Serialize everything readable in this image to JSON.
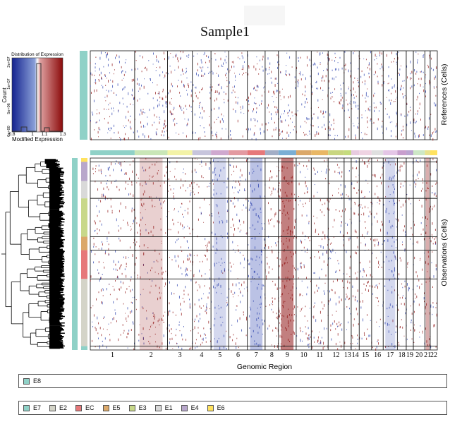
{
  "chart_data": {
    "type": "heatmap",
    "title": "Sample1",
    "xlabel": "Genomic Region",
    "ylabel_top": "References (Cells)",
    "ylabel_bottom": "Observations (Cells)",
    "chromosomes": [
      "1",
      "2",
      "3",
      "4",
      "5",
      "6",
      "7",
      "8",
      "9",
      "10",
      "11",
      "12",
      "13",
      "14",
      "15",
      "16",
      "17",
      "18",
      "19",
      "20",
      "21",
      "22"
    ],
    "chrom_widths": [
      50,
      37,
      28,
      21,
      20,
      21,
      20,
      15,
      20,
      17,
      19,
      18,
      8,
      9,
      14,
      13,
      16,
      10,
      8,
      13,
      6,
      8
    ],
    "chrom_colors": [
      "#8fd1c7",
      "#c9e6b7",
      "#f3f3a6",
      "#c7c5dc",
      "#cfa9cf",
      "#e39aa1",
      "#e6787a",
      "#a3aec6",
      "#7aaed4",
      "#dba86a",
      "#e9b765",
      "#c9d680",
      "#c5dc7d",
      "#e8cbdf",
      "#efd3e2",
      "#dfdfdf",
      "#e4c6e6",
      "#c89ecd",
      "#bba4d1",
      "#cde7c6",
      "#e8e28e",
      "#ffe25f"
    ],
    "chrom_profile_obs": [
      0.15,
      0.35,
      0.15,
      0.2,
      -0.35,
      0.1,
      -0.55,
      0.3,
      0.95,
      0.1,
      0.2,
      0.15,
      0.1,
      0.2,
      0.3,
      0.2,
      -0.35,
      0.15,
      -0.1,
      0.2,
      0.6,
      0.1
    ],
    "legend_title": "Distribution of Expression",
    "legend_xlabel": "Modified Expression",
    "legend_ylabel": "Count",
    "legend_xticks": [
      "0.8",
      "1",
      "1.1",
      "1.3"
    ],
    "legend_yticks": [
      "0e+00",
      "5e+06",
      "1e+07",
      "2e+07"
    ],
    "color_low": "#1f35a8",
    "color_mid": "#ffffff",
    "color_high": "#8b0a0a",
    "reference_groups": [
      {
        "name": "E8",
        "color": "#8fd1c7",
        "share": 1.0
      }
    ],
    "observation_groups": [
      {
        "name": "E6",
        "color": "#ffe25f",
        "share": 0.02
      },
      {
        "name": "E4",
        "color": "#b8a7cb",
        "share": 0.1
      },
      {
        "name": "E1",
        "color": "#d9d9d9",
        "share": 0.09
      },
      {
        "name": "E3",
        "color": "#c8d88a",
        "share": 0.2
      },
      {
        "name": "E5",
        "color": "#dba86a",
        "share": 0.07
      },
      {
        "name": "EC",
        "color": "#e6787a",
        "share": 0.15
      },
      {
        "name": "E2",
        "color": "#d4d4c8",
        "share": 0.35
      },
      {
        "name": "E7",
        "color": "#8fd1c7",
        "share": 0.02
      }
    ]
  },
  "legend_ref": {
    "items": [
      {
        "label": "E8",
        "color": "#8fd1c7"
      }
    ]
  },
  "legend_obs": {
    "items": [
      {
        "label": "E7",
        "color": "#8fd1c7"
      },
      {
        "label": "E2",
        "color": "#d4d4c8"
      },
      {
        "label": "EC",
        "color": "#e6787a"
      },
      {
        "label": "E5",
        "color": "#dba86a"
      },
      {
        "label": "E3",
        "color": "#c8d88a"
      },
      {
        "label": "E1",
        "color": "#d9d9d9"
      },
      {
        "label": "E4",
        "color": "#b8a7cb"
      },
      {
        "label": "E6",
        "color": "#ffe25f"
      }
    ]
  }
}
